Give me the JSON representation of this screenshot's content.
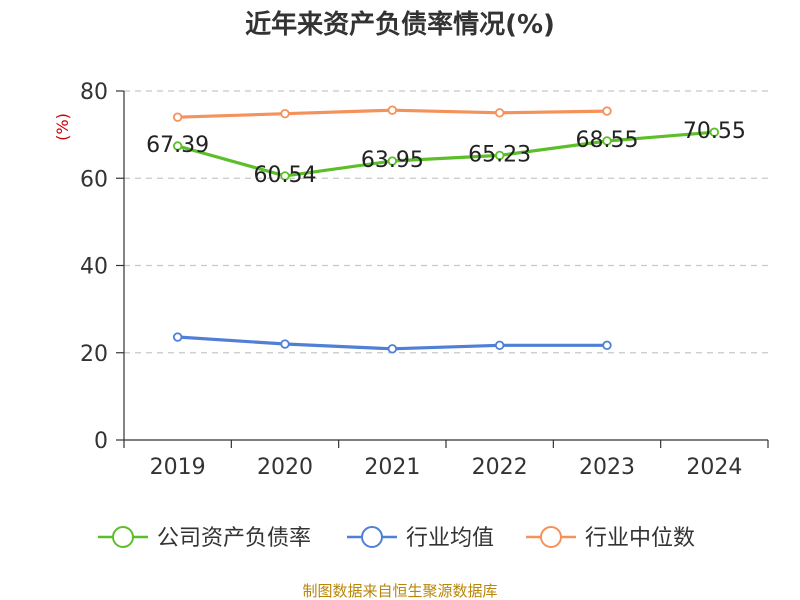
{
  "chart_data": {
    "type": "line",
    "title": "近年来资产负债率情况(%)",
    "ylabel": "(%)",
    "xlabel": "",
    "categories": [
      "2019",
      "2020",
      "2021",
      "2022",
      "2023",
      "2024"
    ],
    "ylim": [
      0,
      80
    ],
    "yticks": [
      0,
      20,
      40,
      60,
      80
    ],
    "grid": true,
    "legend_position": "bottom",
    "series": [
      {
        "name": "公司资产负债率",
        "color": "#5cbf2a",
        "values": [
          67.39,
          60.54,
          63.95,
          65.23,
          68.55,
          70.55
        ],
        "labels": [
          "67.39",
          "60.54",
          "63.95",
          "65.23",
          "68.55",
          "70.55"
        ],
        "show_labels": true
      },
      {
        "name": "行业均值",
        "color": "#4f7fd6",
        "values": [
          23.6,
          22.0,
          20.9,
          21.7,
          21.7,
          null
        ],
        "show_labels": false
      },
      {
        "name": "行业中位数",
        "color": "#f5915a",
        "values": [
          74.0,
          74.8,
          75.6,
          75.0,
          75.4,
          null
        ],
        "show_labels": false
      }
    ]
  },
  "source": "制图数据来自恒生聚源数据库"
}
